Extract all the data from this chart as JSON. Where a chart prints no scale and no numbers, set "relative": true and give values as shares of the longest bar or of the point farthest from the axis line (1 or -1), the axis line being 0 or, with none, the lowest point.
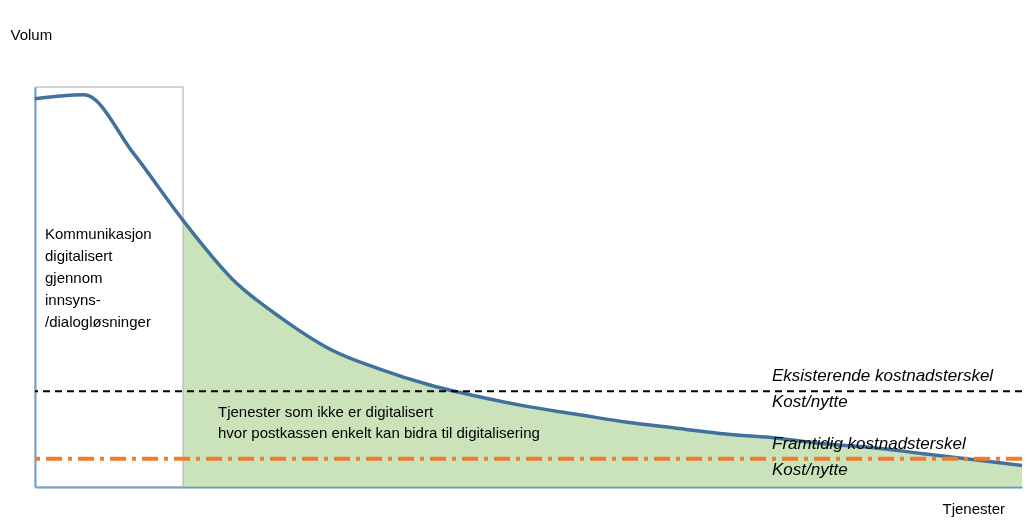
{
  "chart_data": {
    "type": "line",
    "relative": true,
    "xlabel": "Tjenester",
    "ylabel": "Volum",
    "categories": [
      null,
      null,
      null,
      null,
      null,
      null,
      null,
      null,
      null,
      null,
      null,
      null,
      null,
      null,
      null,
      null,
      null,
      null,
      null,
      null,
      null
    ],
    "series": [
      {
        "type": "area",
        "color": "#a9d18e",
        "values": [
          null,
          null,
          null,
          0.68,
          0.53,
          0.43,
          0.35,
          0.3,
          0.26,
          0.23,
          0.205,
          0.185,
          0.165,
          0.15,
          0.135,
          0.125,
          0.11,
          0.1,
          0.085,
          0.07,
          0.055
        ]
      },
      {
        "type": "line",
        "color": "#41719c",
        "values": [
          0.99,
          1.0,
          0.85,
          0.68,
          0.53,
          0.43,
          0.35,
          0.3,
          0.26,
          0.23,
          0.205,
          0.185,
          0.165,
          0.15,
          0.135,
          0.125,
          0.11,
          0.1,
          0.085,
          0.07,
          0.055
        ]
      }
    ],
    "ref_lines": [
      {
        "axis": "y",
        "value": 0.244,
        "label": "Eksisterende kostnadsterskel\nKost/nytte",
        "color": "#000000",
        "line_style": "dashed"
      },
      {
        "axis": "y",
        "value": 0.072,
        "label": "Framtidig kostnadsterskel\nKost/nytte",
        "color": "#ed7d31",
        "line_style": "dashdot"
      }
    ],
    "annotations": [
      "Kommunikasjon\ndigitalisert\ngjennom\ninnsyns-\n/dialogløsninger",
      "Tjenester som ikke er digitalisert\nhvor postkassen enkelt kan bidra til digitalisering"
    ],
    "grid": false,
    "legend": false
  }
}
